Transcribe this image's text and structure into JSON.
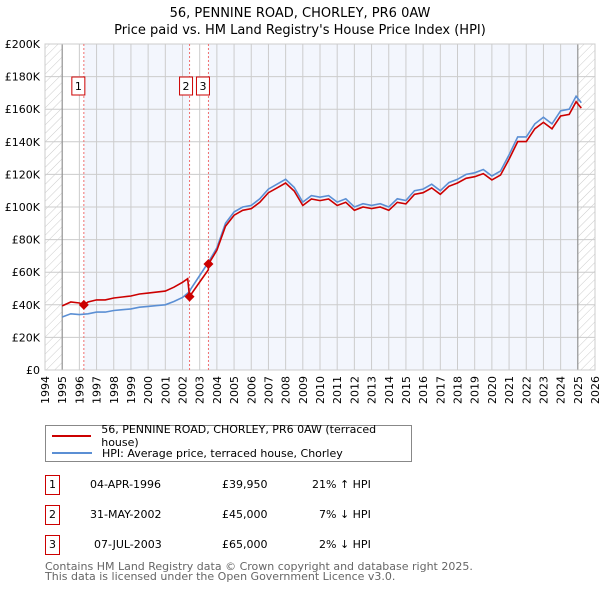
{
  "chart_data": {
    "type": "line",
    "title": "56, PENNINE ROAD, CHORLEY, PR6 0AW",
    "subtitle": "Price paid vs. HM Land Registry's House Price Index (HPI)",
    "xlim": [
      1994,
      2026
    ],
    "ylim": [
      0,
      200000
    ],
    "yticks": [
      "£0",
      "£20K",
      "£40K",
      "£60K",
      "£80K",
      "£100K",
      "£120K",
      "£140K",
      "£160K",
      "£180K",
      "£200K"
    ],
    "xticks": [
      "1994",
      "1995",
      "1996",
      "1997",
      "1998",
      "1999",
      "2000",
      "2001",
      "2002",
      "2003",
      "2004",
      "2005",
      "2006",
      "2007",
      "2008",
      "2009",
      "2010",
      "2011",
      "2012",
      "2013",
      "2014",
      "2015",
      "2016",
      "2017",
      "2018",
      "2019",
      "2020",
      "2021",
      "2022",
      "2023",
      "2024",
      "2025",
      "2026"
    ],
    "grid": true,
    "series": [
      {
        "name": "56, PENNINE ROAD, CHORLEY, PR6 0AW (terraced house)",
        "color": "#cc0000",
        "x": [
          1995,
          1995.5,
          1996,
          1996.26,
          1996.5,
          1997,
          1997.5,
          1998,
          1998.5,
          1999,
          1999.5,
          2000,
          2000.5,
          2001,
          2001.5,
          2002,
          2002.3,
          2002.41,
          2003,
          2003.5,
          2003.51,
          2004,
          2004.5,
          2005,
          2005.5,
          2006,
          2006.5,
          2007,
          2007.5,
          2008,
          2008.5,
          2009,
          2009.5,
          2010,
          2010.5,
          2011,
          2011.5,
          2012,
          2012.5,
          2013,
          2013.5,
          2014,
          2014.5,
          2015,
          2015.5,
          2016,
          2016.5,
          2017,
          2017.5,
          2018,
          2018.5,
          2019,
          2019.5,
          2020,
          2020.5,
          2021,
          2021.5,
          2022,
          2022.5,
          2023,
          2023.5,
          2024,
          2024.5,
          2024.9,
          2025.2
        ],
        "y": [
          39300,
          41700,
          41100,
          39950,
          41700,
          43000,
          43000,
          44200,
          44800,
          45400,
          46600,
          47200,
          47800,
          48400,
          50800,
          53800,
          56000,
          45000,
          54000,
          61400,
          65000,
          73500,
          88200,
          95000,
          98000,
          99000,
          102900,
          108800,
          111700,
          114700,
          109800,
          100900,
          104900,
          103900,
          104900,
          100900,
          102900,
          98000,
          100000,
          99000,
          100000,
          98000,
          102900,
          101900,
          107800,
          108800,
          111700,
          107800,
          112700,
          114700,
          117600,
          118600,
          120500,
          116600,
          119600,
          129400,
          140100,
          140100,
          148000,
          151900,
          148000,
          155800,
          156800,
          164600,
          160700
        ]
      },
      {
        "name": "HPI: Average price, terraced house, Chorley",
        "color": "#5b8fd4",
        "x": [
          1995,
          1995.5,
          1996,
          1996.5,
          1997,
          1997.5,
          1998,
          1998.5,
          1999,
          1999.5,
          2000,
          2000.5,
          2001,
          2001.5,
          2002,
          2002.4,
          2002.5,
          2003,
          2003.5,
          2004,
          2004.5,
          2005,
          2005.5,
          2006,
          2006.5,
          2007,
          2007.5,
          2008,
          2008.5,
          2009,
          2009.5,
          2010,
          2010.5,
          2011,
          2011.5,
          2012,
          2012.5,
          2013,
          2013.5,
          2014,
          2014.5,
          2015,
          2015.5,
          2016,
          2016.5,
          2017,
          2017.5,
          2018,
          2018.5,
          2019,
          2019.5,
          2020,
          2020.5,
          2021,
          2021.5,
          2022,
          2022.5,
          2023,
          2023.5,
          2024,
          2024.5,
          2024.9,
          2025.2
        ],
        "y": [
          32500,
          34500,
          34000,
          34500,
          35500,
          35500,
          36500,
          37000,
          37500,
          38500,
          39000,
          39500,
          40000,
          42000,
          44500,
          48000,
          50000,
          58000,
          66000,
          75000,
          90000,
          97000,
          100000,
          101000,
          105000,
          111000,
          114000,
          117000,
          112000,
          103000,
          107000,
          106000,
          107000,
          103000,
          105000,
          100000,
          102000,
          101000,
          102000,
          100000,
          105000,
          104000,
          110000,
          111000,
          114000,
          110000,
          115000,
          117000,
          120000,
          121000,
          123000,
          119000,
          122000,
          132000,
          143000,
          143000,
          151000,
          155000,
          151000,
          159000,
          160000,
          168000,
          164000
        ]
      }
    ],
    "sales": [
      {
        "label": "1",
        "x": 1996.26,
        "y": 39950
      },
      {
        "label": "2",
        "x": 2002.41,
        "y": 45000
      },
      {
        "label": "3",
        "x": 2003.51,
        "y": 65000
      }
    ]
  },
  "legend": {
    "property": "56, PENNINE ROAD, CHORLEY, PR6 0AW (terraced house)",
    "hpi": "HPI: Average price, terraced house, Chorley"
  },
  "transactions": [
    {
      "num": "1",
      "date": "04-APR-1996",
      "price": "£39,950",
      "hpi": "21% ↑ HPI"
    },
    {
      "num": "2",
      "date": "31-MAY-2002",
      "price": "£45,000",
      "hpi": "7% ↓ HPI"
    },
    {
      "num": "3",
      "date": "07-JUL-2003",
      "price": "£65,000",
      "hpi": "2% ↓ HPI"
    }
  ],
  "footer": {
    "line1": "Contains HM Land Registry data © Crown copyright and database right 2025.",
    "line2": "This data is licensed under the Open Government Licence v3.0."
  }
}
